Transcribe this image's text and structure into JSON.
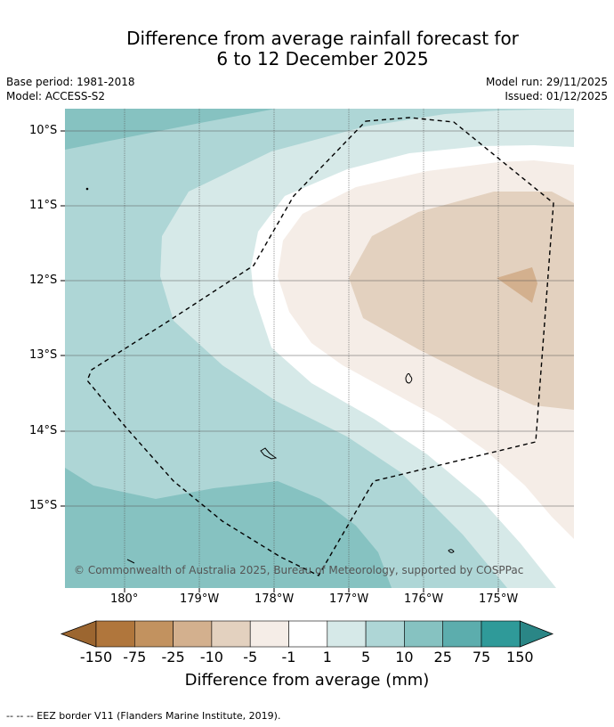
{
  "title": {
    "line1": "Difference from average rainfall forecast for",
    "line2": "6 to 12 December 2025"
  },
  "meta": {
    "base_period": "Base period: 1981-2018",
    "model": "Model: ACCESS-S2",
    "model_run": "Model run: 29/11/2025",
    "issued": "Issued: 01/12/2025"
  },
  "map": {
    "lat_ticks": [
      "10°S",
      "11°S",
      "12°S",
      "13°S",
      "14°S",
      "15°S"
    ],
    "lon_ticks": [
      "180°",
      "179°W",
      "178°W",
      "177°W",
      "176°W",
      "175°W"
    ],
    "copyright": "© Commonwealth of Australia 2025, Bureau of Meteorology, supported by COSPPac"
  },
  "colorbar": {
    "labels": [
      "-150",
      "-75",
      "-25",
      "-10",
      "-5",
      "-1",
      "1",
      "5",
      "10",
      "25",
      "75",
      "150"
    ],
    "colors": [
      "#9c6630",
      "#b0763c",
      "#c2925f",
      "#d3b08e",
      "#e3d1bf",
      "#f5ede7",
      "#ffffff",
      "#d6e9e8",
      "#aed6d6",
      "#86c2c1",
      "#5cadad",
      "#2f9a99",
      "#2a8686"
    ],
    "title": "Difference from average (mm)"
  },
  "footnote": "--  --  -- EEZ border V11 (Flanders Marine Institute, 2019)."
}
